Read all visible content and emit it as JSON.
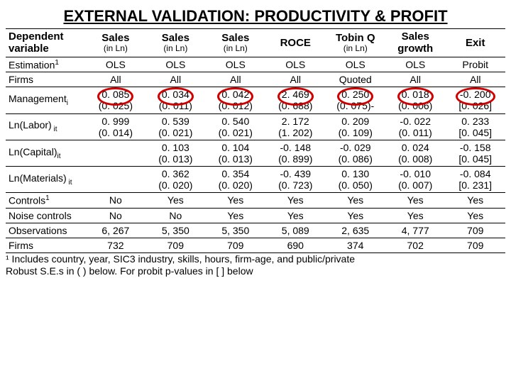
{
  "title": "EXTERNAL VALIDATION: PRODUCTIVITY & PROFIT",
  "header": {
    "row_label": "Dependent variable",
    "cols": [
      {
        "label": "Sales",
        "sub": "(in Ln)"
      },
      {
        "label": "Sales",
        "sub": "(in Ln)"
      },
      {
        "label": "Sales",
        "sub": "(in Ln)"
      },
      {
        "label": "ROCE",
        "sub": ""
      },
      {
        "label": "Tobin Q",
        "sub": "(in Ln)"
      },
      {
        "label": "Sales growth",
        "sub": ""
      },
      {
        "label": "Exit",
        "sub": ""
      }
    ]
  },
  "rows": [
    {
      "label": "Estimation",
      "sup": "1",
      "cells": [
        "OLS",
        "OLS",
        "OLS",
        "OLS",
        "OLS",
        "OLS",
        "Probit"
      ]
    },
    {
      "label": "Firms",
      "cells": [
        "All",
        "All",
        "All",
        "All",
        "Quoted",
        "All",
        "All"
      ]
    },
    {
      "label": "Management",
      "sub": "i",
      "coef": [
        "0. 085",
        "0. 034",
        "0. 042",
        "2. 469",
        "0. 250",
        "0. 018",
        "-0. 200"
      ],
      "se": [
        "(0. 025)",
        "(0. 011)",
        "(0. 012)",
        "(0. 688)",
        "(0. 075)-",
        "(0. 006)",
        "[0. 026]"
      ],
      "circled": true
    },
    {
      "label": "Ln(Labor)",
      "sub": " it",
      "coef": [
        "0. 999",
        "0. 539",
        "0. 540",
        "2. 172",
        "0. 209",
        "-0. 022",
        "0. 233"
      ],
      "se": [
        "(0. 014)",
        "(0. 021)",
        "(0. 021)",
        "(1. 202)",
        "(0. 109)",
        "(0. 011)",
        "[0. 045]"
      ]
    },
    {
      "label": "Ln(Capital)",
      "sub": "it",
      "coef": [
        "",
        "0. 103",
        "0. 104",
        "-0. 148",
        "-0. 029",
        "0. 024",
        "-0. 158"
      ],
      "se": [
        "",
        "(0. 013)",
        "(0. 013)",
        "(0. 899)",
        "(0. 086)",
        "(0. 008)",
        "[0. 045]"
      ]
    },
    {
      "label": "Ln(Materials)",
      "sub": " it",
      "coef": [
        "",
        "0. 362",
        "0. 354",
        "-0. 439",
        "0. 130",
        "-0. 010",
        "-0. 084"
      ],
      "se": [
        "",
        "(0. 020)",
        "(0. 020)",
        "(0. 723)",
        "(0. 050)",
        "(0. 007)",
        "[0. 231]"
      ]
    },
    {
      "label": "Controls",
      "sup": "1",
      "cells": [
        "No",
        "Yes",
        "Yes",
        "Yes",
        "Yes",
        "Yes",
        "Yes"
      ]
    },
    {
      "label": "Noise controls",
      "cells": [
        "No",
        "No",
        "Yes",
        "Yes",
        "Yes",
        "Yes",
        "Yes"
      ]
    },
    {
      "label": "Observations",
      "cells": [
        "6, 267",
        "5, 350",
        "5, 350",
        "5, 089",
        "2, 635",
        "4, 777",
        "709"
      ]
    },
    {
      "label": "Firms",
      "cells": [
        "732",
        "709",
        "709",
        "690",
        "374",
        "702",
        "709"
      ]
    }
  ],
  "footnotes": [
    "¹ Includes country, year, SIC3 industry, skills, hours, firm-age, and public/private",
    "Robust S.E.s in ( ) below. For probit p-values in [ ] below"
  ]
}
